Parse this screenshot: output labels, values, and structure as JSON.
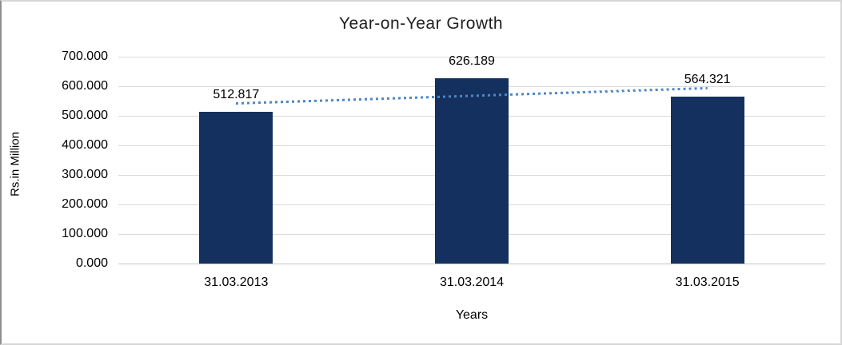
{
  "chart_data": {
    "type": "bar",
    "title": "Year-on-Year Growth",
    "xlabel": "Years",
    "ylabel": "Rs.in Million",
    "categories": [
      "31.03.2013",
      "31.03.2014",
      "31.03.2015"
    ],
    "values": [
      512.817,
      626.189,
      564.321
    ],
    "value_labels": [
      "512.817",
      "626.189",
      "564.321"
    ],
    "y_ticks": [
      "700.000",
      "600.000",
      "500.000",
      "400.000",
      "300.000",
      "200.000",
      "100.000",
      "0.000"
    ],
    "ylim": [
      0,
      700
    ],
    "grid": "horizontal-only",
    "legend_position": "none",
    "bar_color": "#14305E",
    "gridline_color": "#d9d9d9",
    "zero_line_color": "#c3c3c3",
    "trendline": {
      "type": "linear",
      "style": "dotted",
      "color": "#4F86C6",
      "start_value": 542.0,
      "end_value": 593.5
    }
  }
}
